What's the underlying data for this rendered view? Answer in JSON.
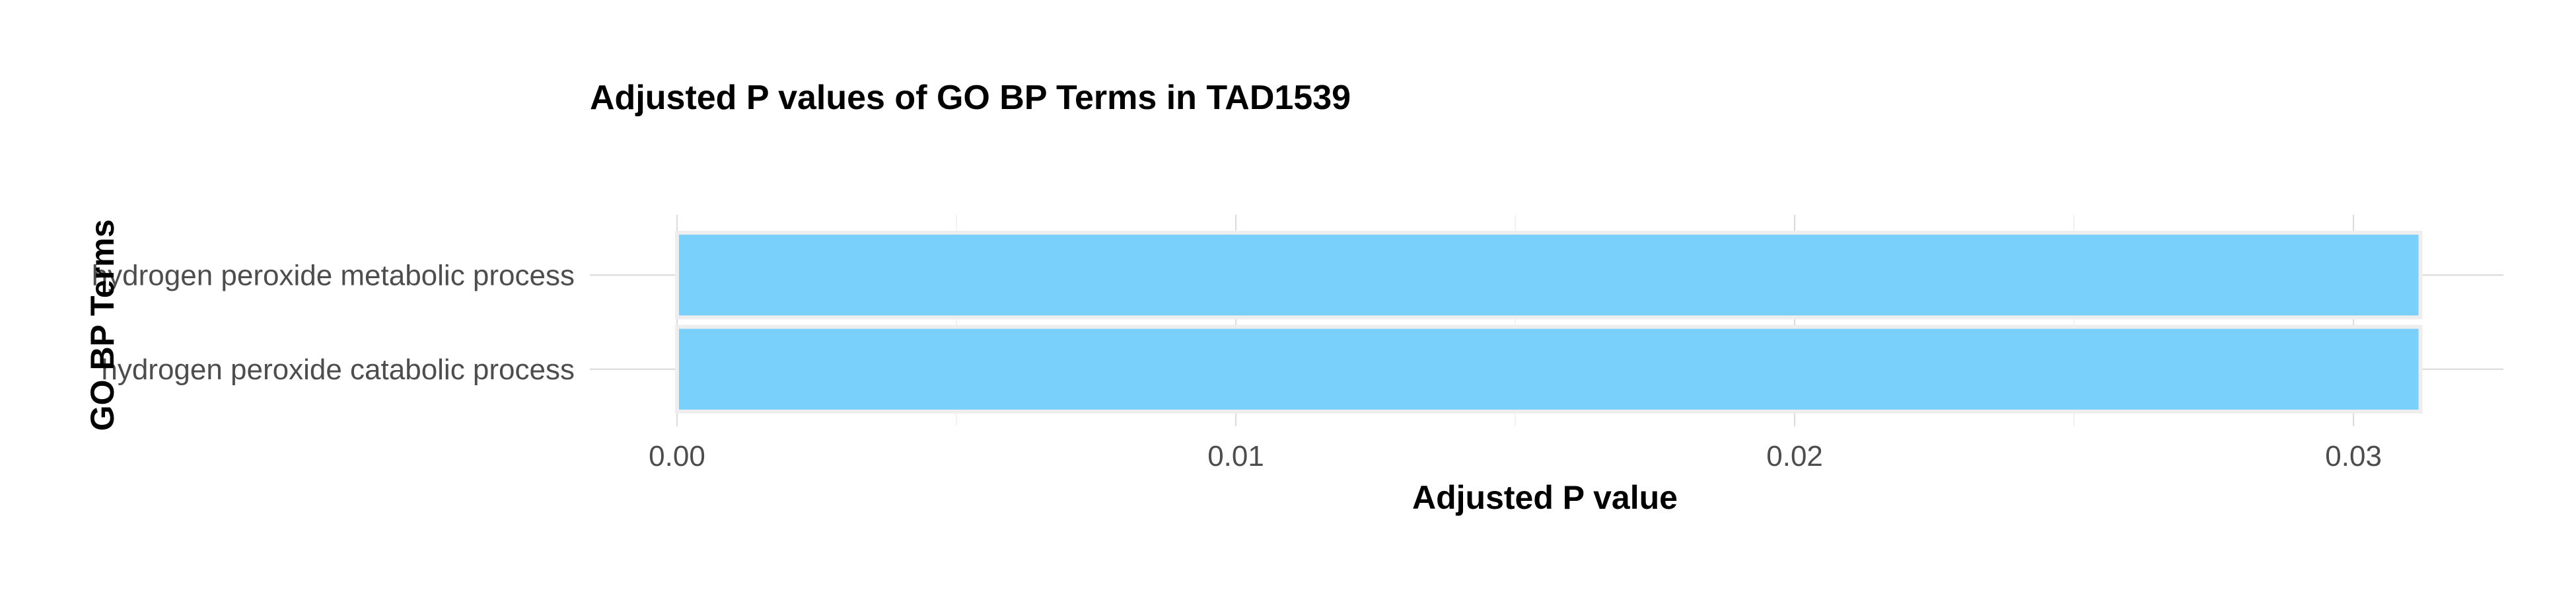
{
  "chart_data": {
    "type": "bar",
    "orientation": "horizontal",
    "title": "Adjusted P values of GO BP Terms in TAD1539",
    "xlabel": "Adjusted P value",
    "ylabel": "GO BP Terms",
    "categories": [
      "hydrogen peroxide metabolic process",
      "hydrogen peroxide catabolic process"
    ],
    "values": [
      0.0312,
      0.0312
    ],
    "xlim": [
      0,
      0.0328
    ],
    "x_ticks": [
      0.0,
      0.01,
      0.02,
      0.03
    ],
    "x_tick_labels": [
      "0.00",
      "0.01",
      "0.02",
      "0.03"
    ],
    "bar_color": "#75CFFB",
    "bar_outline_color": "#EEEEEE",
    "grid": true,
    "legend": "none"
  }
}
